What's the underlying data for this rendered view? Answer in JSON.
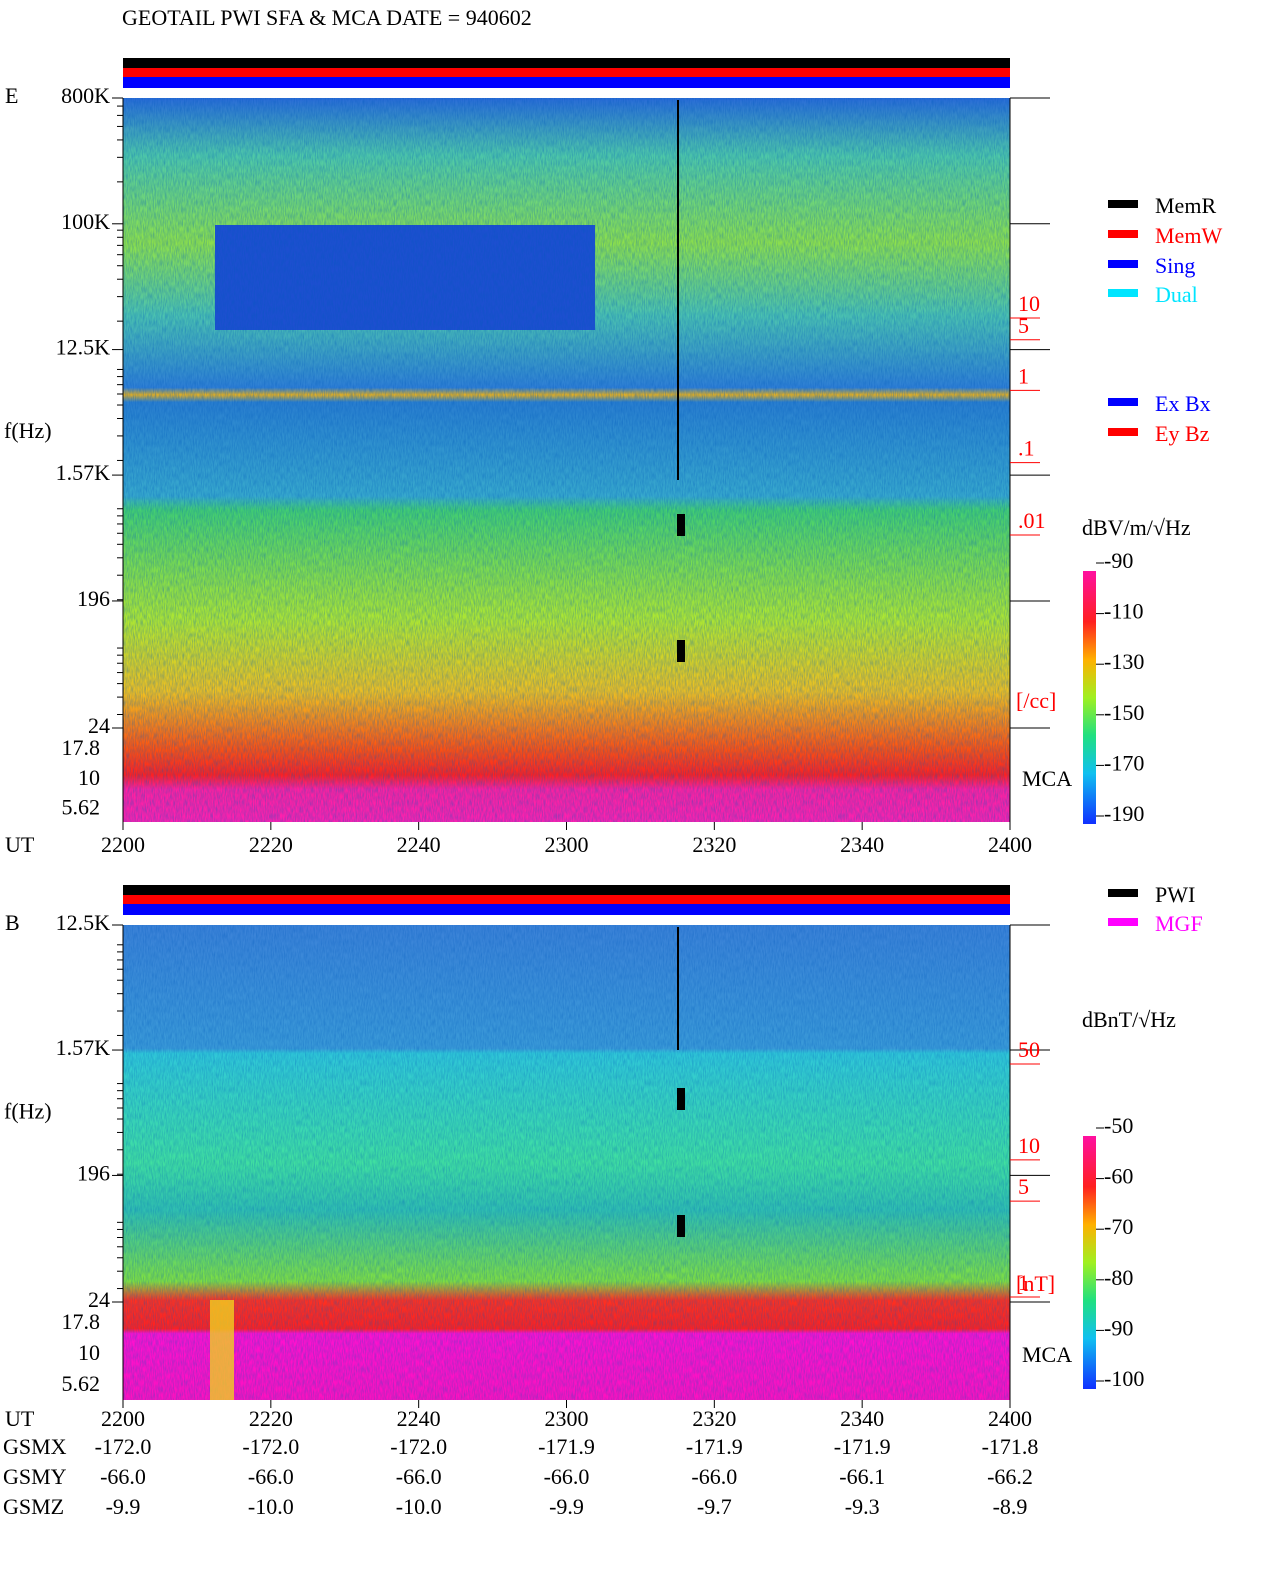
{
  "chart_data": [
    {
      "type": "spectrogram",
      "title": "GEOTAIL  PWI SFA & MCA   DATE = 940602",
      "component": "E",
      "ylabel": "f(Hz)",
      "xlabel": "UT",
      "yscale": "log",
      "ylim": [
        24,
        800000
      ],
      "yticks": [
        {
          "value": 800000,
          "label": "800K"
        },
        {
          "value": 100000,
          "label": "100K"
        },
        {
          "value": 12500,
          "label": "12.5K"
        },
        {
          "value": 1570,
          "label": "1.57K"
        },
        196,
        24
      ],
      "mca_label": "MCA",
      "mca_ticks": [
        17.8,
        10,
        5.62
      ],
      "time_ticks": [
        "2200",
        "2220",
        "2240",
        "2300",
        "2320",
        "2340",
        "2400"
      ],
      "y2scale": "log",
      "y2lim": [
        0.01,
        10
      ],
      "y2ticks": [
        10,
        5,
        1,
        {
          "value": 0.1,
          "label": ".1"
        },
        {
          "value": 0.01,
          "label": ".01"
        }
      ],
      "y2label": "[/cc]",
      "colorbar": {
        "label": "dBV/m/√Hz",
        "clim": [
          -190,
          -90
        ],
        "ticks": [
          -90,
          -110,
          -130,
          -150,
          -170,
          -190
        ]
      },
      "legend": [
        [
          {
            "name": "MemR",
            "color": "#000000"
          },
          {
            "name": "MemW",
            "color": "#ff0000"
          },
          {
            "name": "Sing",
            "color": "#0000ff"
          },
          {
            "name": "Dual",
            "color": "#00e5ff"
          }
        ],
        [
          {
            "name": "Ex Bx",
            "color": "#0000ff"
          },
          {
            "name": "Ey Bz",
            "color": "#ff0000"
          }
        ]
      ]
    },
    {
      "type": "spectrogram",
      "component": "B",
      "ylabel": "f(Hz)",
      "xlabel": "UT",
      "yscale": "log",
      "ylim": [
        24,
        12500
      ],
      "yticks": [
        {
          "value": 12500,
          "label": "12.5K"
        },
        {
          "value": 1570,
          "label": "1.57K"
        },
        196,
        24
      ],
      "mca_label": "MCA",
      "mca_ticks": [
        17.8,
        10,
        5.62
      ],
      "time_ticks": [
        "2200",
        "2220",
        "2240",
        "2300",
        "2320",
        "2340",
        "2400"
      ],
      "y2scale": "log",
      "y2lim": [
        1,
        50
      ],
      "y2ticks": [
        50,
        10,
        5,
        1
      ],
      "y2label": "[nT]",
      "colorbar": {
        "label": "dBnT/√Hz",
        "clim": [
          -100,
          -50
        ],
        "ticks": [
          -50,
          -60,
          -70,
          -80,
          -90,
          -100
        ]
      },
      "legend": [
        [
          {
            "name": "PWI",
            "color": "#000000"
          },
          {
            "name": "MGF",
            "color": "#ff00ff"
          }
        ]
      ]
    }
  ],
  "orbit": {
    "rows": [
      {
        "name": "GSMX",
        "values": [
          "-172.0",
          "-172.0",
          "-172.0",
          "-171.9",
          "-171.9",
          "-171.9",
          "-171.8"
        ]
      },
      {
        "name": "GSMY",
        "values": [
          "-66.0",
          "-66.0",
          "-66.0",
          "-66.0",
          "-66.0",
          "-66.1",
          "-66.2"
        ]
      },
      {
        "name": "GSMZ",
        "values": [
          "-9.9",
          "-10.0",
          "-10.0",
          "-9.9",
          "-9.7",
          "-9.3",
          "-8.9"
        ]
      }
    ]
  }
}
